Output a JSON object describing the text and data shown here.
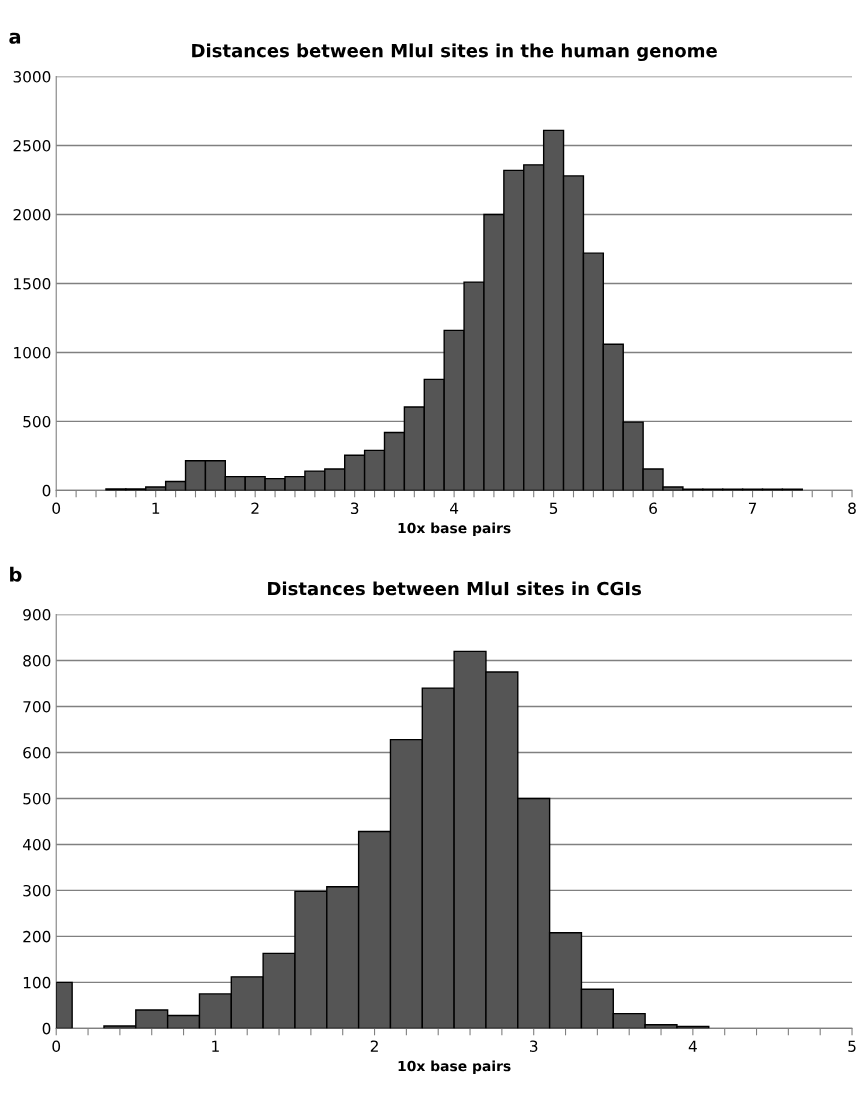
{
  "chart_data": [
    {
      "type": "histogram",
      "title": "Distances between MluI sites in the human genome",
      "xlabel": "10x base pairs",
      "annotations": [
        "a"
      ],
      "bins": [
        0.5,
        0.7,
        0.9,
        1.1,
        1.3,
        1.5,
        1.7,
        1.9,
        2.1,
        2.3,
        2.5,
        2.7,
        2.9,
        3.1,
        3.3,
        3.5,
        3.7,
        3.9,
        4.1,
        4.3,
        4.5,
        4.7,
        4.9,
        5.1,
        5.3,
        5.5,
        5.7,
        5.9,
        6.1,
        6.3,
        6.5,
        6.7,
        6.9,
        7.1,
        7.3,
        7.5
      ],
      "values": [
        10,
        10,
        25,
        65,
        215,
        215,
        100,
        100,
        85,
        100,
        140,
        155,
        255,
        290,
        420,
        605,
        805,
        1160,
        1510,
        2000,
        2320,
        2360,
        2610,
        2280,
        1720,
        1060,
        495,
        155,
        25,
        8,
        8,
        8,
        8,
        8,
        8
      ],
      "color": "#555555",
      "grid": "y",
      "xlim": [
        0,
        8
      ],
      "xticks": [
        0,
        {
          "value": 0.2,
          "label": null
        },
        {
          "value": 0.4,
          "label": null
        },
        {
          "value": 0.6,
          "label": null
        },
        {
          "value": 0.8,
          "label": null
        },
        1,
        {
          "value": 1.2,
          "label": null
        },
        {
          "value": 1.4,
          "label": null
        },
        {
          "value": 1.6,
          "label": null
        },
        {
          "value": 1.8,
          "label": null
        },
        2,
        {
          "value": 2.2,
          "label": null
        },
        {
          "value": 2.4,
          "label": null
        },
        {
          "value": 2.6,
          "label": null
        },
        {
          "value": 2.8,
          "label": null
        },
        3,
        {
          "value": 3.2,
          "label": null
        },
        {
          "value": 3.4,
          "label": null
        },
        {
          "value": 3.6,
          "label": null
        },
        {
          "value": 3.8,
          "label": null
        },
        4,
        {
          "value": 4.2,
          "label": null
        },
        {
          "value": 4.4,
          "label": null
        },
        {
          "value": 4.6,
          "label": null
        },
        {
          "value": 4.8,
          "label": null
        },
        5,
        {
          "value": 5.2,
          "label": null
        },
        {
          "value": 5.4,
          "label": null
        },
        {
          "value": 5.6,
          "label": null
        },
        {
          "value": 5.8,
          "label": null
        },
        6,
        {
          "value": 6.2,
          "label": null
        },
        {
          "value": 6.4,
          "label": null
        },
        {
          "value": 6.6,
          "label": null
        },
        {
          "value": 6.8,
          "label": null
        },
        7,
        {
          "value": 7.2,
          "label": null
        },
        {
          "value": 7.4,
          "label": null
        },
        {
          "value": 7.6,
          "label": null
        },
        {
          "value": 7.8,
          "label": null
        },
        8
      ],
      "ylim": [
        0,
        3000
      ],
      "yticks": [
        0,
        500,
        1000,
        1500,
        2000,
        2500,
        3000
      ]
    },
    {
      "type": "histogram",
      "title": "Distances between MluI sites in CGIs",
      "xlabel": "10x base pairs",
      "annotations": [
        "b"
      ],
      "bins": [
        0,
        0.1,
        0.3,
        0.5,
        0.7,
        0.9,
        1.1,
        1.3,
        1.5,
        1.7,
        1.9,
        2.1,
        2.3,
        2.5,
        2.7,
        2.9,
        3.1,
        3.3,
        3.5,
        3.7,
        3.9,
        4.1
      ],
      "values": [
        100,
        0,
        5,
        40,
        28,
        75,
        112,
        163,
        298,
        308,
        428,
        628,
        740,
        820,
        775,
        500,
        208,
        85,
        32,
        8,
        4
      ],
      "color": "#555555",
      "grid": "y",
      "xlim": [
        0,
        5
      ],
      "xticks": [
        0,
        {
          "value": 0.2,
          "label": null
        },
        {
          "value": 0.4,
          "label": null
        },
        {
          "value": 0.6,
          "label": null
        },
        {
          "value": 0.8,
          "label": null
        },
        1,
        {
          "value": 1.2,
          "label": null
        },
        {
          "value": 1.4,
          "label": null
        },
        {
          "value": 1.6,
          "label": null
        },
        {
          "value": 1.8,
          "label": null
        },
        2,
        {
          "value": 2.2,
          "label": null
        },
        {
          "value": 2.4,
          "label": null
        },
        {
          "value": 2.6,
          "label": null
        },
        {
          "value": 2.8,
          "label": null
        },
        3,
        {
          "value": 3.2,
          "label": null
        },
        {
          "value": 3.4,
          "label": null
        },
        {
          "value": 3.6,
          "label": null
        },
        {
          "value": 3.8,
          "label": null
        },
        4,
        {
          "value": 4.2,
          "label": null
        },
        {
          "value": 4.4,
          "label": null
        },
        {
          "value": 4.6,
          "label": null
        },
        {
          "value": 4.8,
          "label": null
        },
        5
      ],
      "ylim": [
        0,
        900
      ],
      "yticks": [
        0,
        100,
        200,
        300,
        400,
        500,
        600,
        700,
        800,
        900
      ]
    }
  ]
}
